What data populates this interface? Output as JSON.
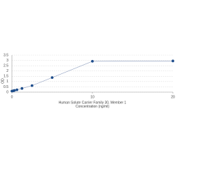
{
  "chart_data": {
    "type": "line",
    "x_label_lines": [
      "Human Solute Carrier Family 30, Member 1",
      "Concentration (ng/ml)"
    ],
    "y_label": "OD",
    "x": [
      0,
      0.156,
      0.313,
      0.625,
      1.25,
      2.5,
      5,
      10,
      20
    ],
    "series": [
      {
        "color": "#1f4e8c",
        "line_color": "#8899bb",
        "values": [
          0.1,
          0.12,
          0.16,
          0.22,
          0.35,
          0.62,
          1.38,
          2.92,
          2.95
        ]
      }
    ],
    "xlim": [
      0,
      20
    ],
    "xticks": [
      0,
      10,
      20
    ],
    "ylim": [
      0,
      3.5
    ],
    "yticks": [
      0,
      0.5,
      1,
      1.5,
      2,
      2.5,
      3,
      3.5
    ],
    "grid": true
  }
}
